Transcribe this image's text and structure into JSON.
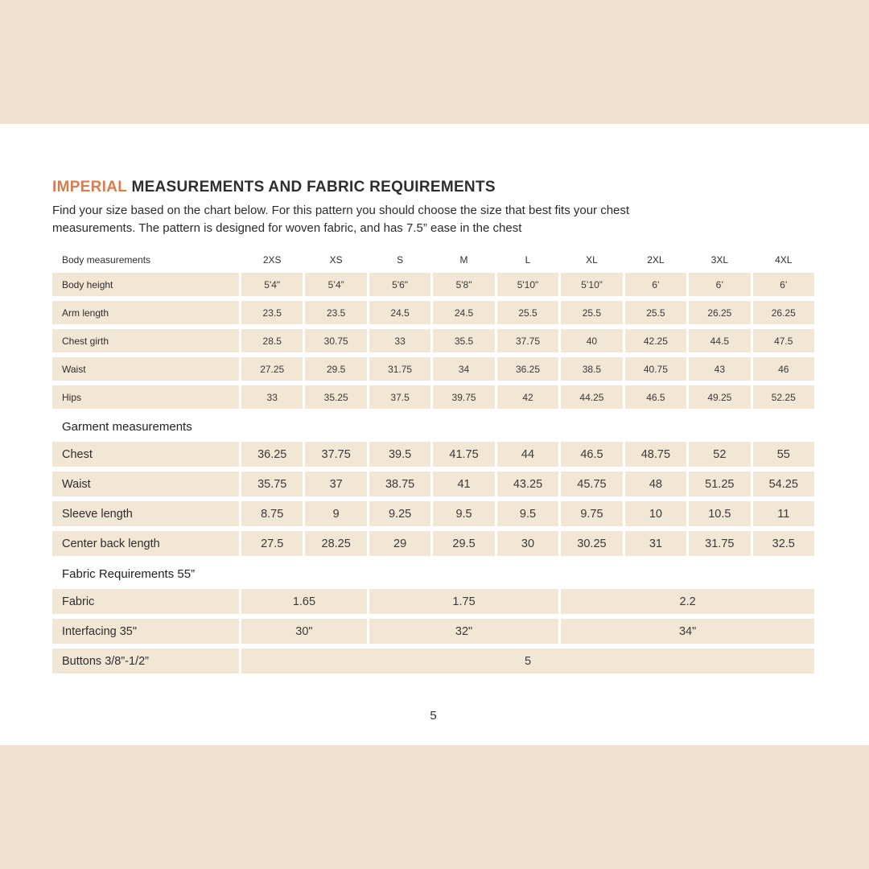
{
  "colors": {
    "band": "#f0e2cf",
    "table_cell": "#f2e6d4",
    "accent_orange": "#d97c4e",
    "text": "#2e2e2e"
  },
  "header": {
    "title_accent": "IMPERIAL",
    "title_rest": "MEASUREMENTS AND FABRIC REQUIREMENTS",
    "intro_line1": "Find your size based on the chart below. For this pattern you should choose the size that best fits your chest",
    "intro_line2": "measurements. The pattern is designed for woven fabric, and has 7.5” ease in the chest"
  },
  "table": {
    "header_label": "Body measurements",
    "sizes": [
      "2XS",
      "XS",
      "S",
      "M",
      "L",
      "XL",
      "2XL",
      "3XL",
      "4XL"
    ],
    "body_rows": [
      {
        "label": "Body height",
        "values": [
          "5'4\"",
          "5’4”",
          "5'6\"",
          "5'8\"",
          "5'10\"",
          "5’10”",
          "6’",
          "6’",
          "6’"
        ]
      },
      {
        "label": "Arm length",
        "values": [
          "23.5",
          "23.5",
          "24.5",
          "24.5",
          "25.5",
          "25.5",
          "25.5",
          "26.25",
          "26.25"
        ]
      },
      {
        "label": "Chest girth",
        "values": [
          "28.5",
          "30.75",
          "33",
          "35.5",
          "37.75",
          "40",
          "42.25",
          "44.5",
          "47.5"
        ]
      },
      {
        "label": "Waist",
        "values": [
          "27.25",
          "29.5",
          "31.75",
          "34",
          "36.25",
          "38.5",
          "40.75",
          "43",
          "46"
        ]
      },
      {
        "label": "Hips",
        "values": [
          "33",
          "35.25",
          "37.5",
          "39.75",
          "42",
          "44.25",
          "46.5",
          "49.25",
          "52.25"
        ]
      }
    ],
    "garment_section_label": "Garment measurements",
    "garment_rows": [
      {
        "label": "Chest",
        "values": [
          "36.25",
          "37.75",
          "39.5",
          "41.75",
          "44",
          "46.5",
          "48.75",
          "52",
          "55"
        ]
      },
      {
        "label": "Waist",
        "values": [
          "35.75",
          "37",
          "38.75",
          "41",
          "43.25",
          "45.75",
          "48",
          "51.25",
          "54.25"
        ]
      },
      {
        "label": "Sleeve length",
        "values": [
          "8.75",
          "9",
          "9.25",
          "9.5",
          "9.5",
          "9.75",
          "10",
          "10.5",
          "11"
        ]
      },
      {
        "label": "Center back length",
        "values": [
          "27.5",
          "28.25",
          "29",
          "29.5",
          "30",
          "30.25",
          "31",
          "31.75",
          "32.5"
        ]
      }
    ],
    "fabric_section_label": "Fabric Requirements 55”",
    "fabric_rows": [
      {
        "label": "Fabric",
        "cells": [
          {
            "span": 2,
            "value": "1.65"
          },
          {
            "span": 3,
            "value": "1.75"
          },
          {
            "span": 4,
            "value": "2.2"
          }
        ]
      },
      {
        "label": "Interfacing 35\"",
        "cells": [
          {
            "span": 2,
            "value": "30\""
          },
          {
            "span": 3,
            "value": "32\""
          },
          {
            "span": 4,
            "value": "34\""
          }
        ]
      },
      {
        "label": "Buttons 3/8”-1/2”",
        "cells": [
          {
            "span": 9,
            "value": "5"
          }
        ]
      }
    ]
  },
  "page": {
    "number": "5"
  }
}
